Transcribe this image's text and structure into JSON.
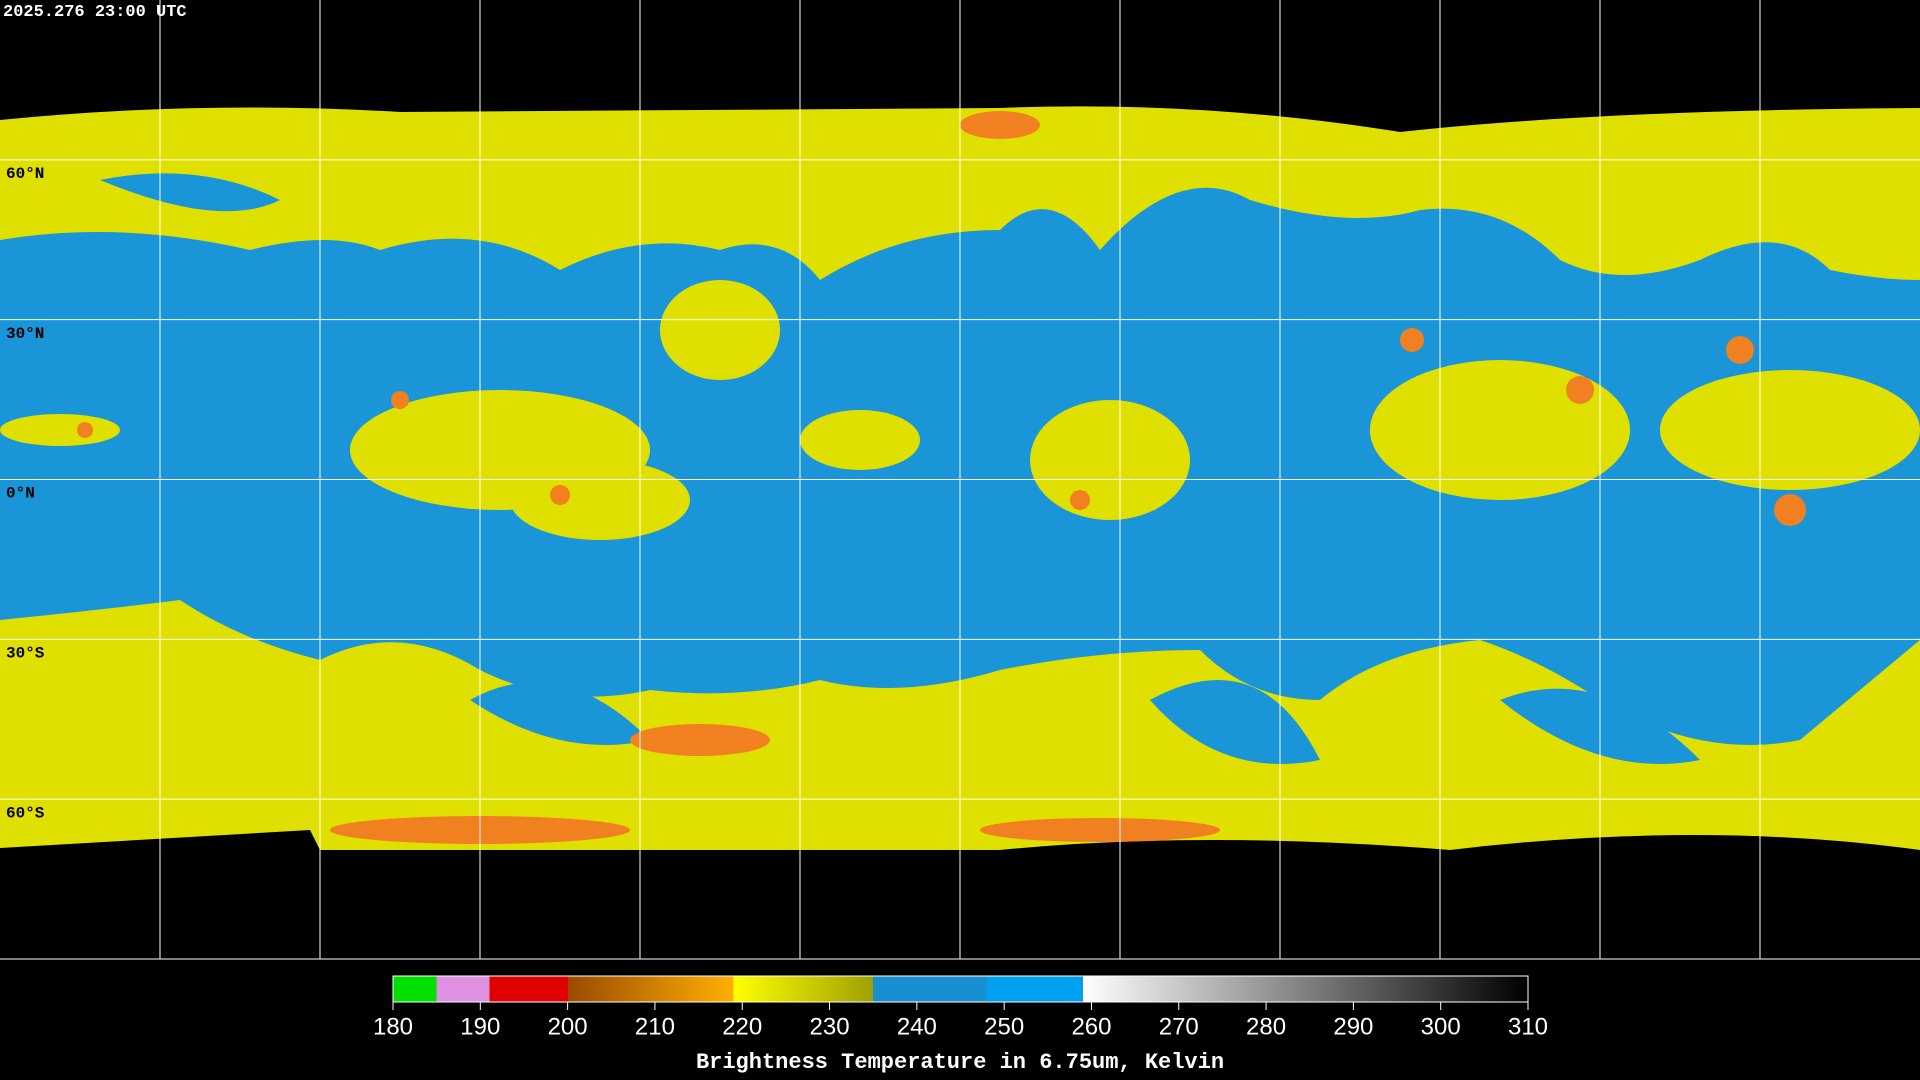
{
  "header": {
    "title": "2025.276 23:00 UTC"
  },
  "map": {
    "lat_labels": [
      "60°N",
      "30°N",
      "0°N",
      "30°S",
      "60°S"
    ]
  },
  "colorbar": {
    "range": [
      180,
      310
    ],
    "ticks": [
      180,
      190,
      200,
      210,
      220,
      230,
      240,
      250,
      260,
      270,
      280,
      290,
      300,
      310
    ],
    "label": "Brightness Temperature in 6.75um, Kelvin"
  }
}
